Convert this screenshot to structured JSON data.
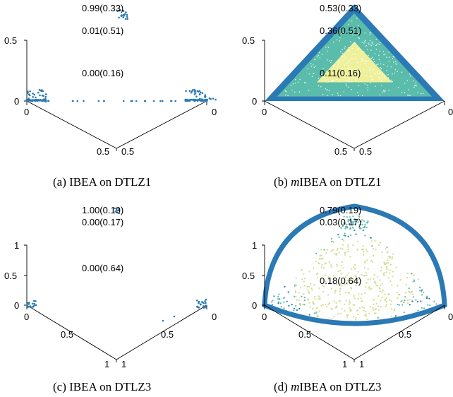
{
  "colors": {
    "boundary": "#2b79b5",
    "mid": "#5bbcab",
    "inner": "#eef09a",
    "inner_dtlz3": "#d1dc8c",
    "background": "#ffffff"
  },
  "chart_data": [
    {
      "id": "a",
      "type": "scatter",
      "caption_label": "(a) IBEA on DTLZ1",
      "problem": "DTLZ1",
      "axis_max": 0.5,
      "tick_labels": {
        "z_top": "0.5",
        "z_zero": "0",
        "left_zero": "0",
        "right_zero": "0",
        "left_half": "0.5",
        "right_half": "0.5"
      },
      "annotations": [
        "0.99(0.33)",
        "0.01(0.51)",
        "0.00(0.16)"
      ],
      "fill_regions": false
    },
    {
      "id": "b",
      "type": "scatter",
      "caption_label": "(b) mIBEA on DTLZ1",
      "caption_prefix": "(b) ",
      "caption_italic": "m",
      "caption_rest": "IBEA on DTLZ1",
      "problem": "DTLZ1",
      "axis_max": 0.5,
      "tick_labels": {
        "z_top": "0.5",
        "z_zero": "0",
        "left_zero": "0",
        "right_zero": "0",
        "left_half": "0.5",
        "right_half": "0.5"
      },
      "annotations": [
        "0.53(0.33)",
        "0.36(0.51)",
        "0.11(0.16)"
      ],
      "fill_regions": true
    },
    {
      "id": "c",
      "type": "scatter",
      "caption_label": "(c) IBEA on DTLZ3",
      "problem": "DTLZ3",
      "axis_max": 1,
      "tick_labels": {
        "z_top": "1",
        "z_mid": "0.5",
        "z_zero": "0",
        "left_zero": "0",
        "right_zero": "0",
        "left_half": "0.5",
        "right_half": "0.5",
        "left_one": "1",
        "right_one": "1"
      },
      "annotations": [
        "1.00(0.19)",
        "0.00(0.17)",
        "0.00(0.64)"
      ],
      "fill_regions": false
    },
    {
      "id": "d",
      "type": "scatter",
      "caption_label": "(d) mIBEA on DTLZ3",
      "caption_prefix": "(d) ",
      "caption_italic": "m",
      "caption_rest": "IBEA on DTLZ3",
      "problem": "DTLZ3",
      "axis_max": 1,
      "tick_labels": {
        "z_top": "1",
        "z_mid": "0.5",
        "z_zero": "0",
        "left_zero": "0",
        "right_zero": "0",
        "left_half": "0.5",
        "right_half": "0.5",
        "left_one": "1",
        "right_one": "1"
      },
      "annotations": [
        "0.79(0.19)",
        "0.03(0.17)",
        "0.18(0.64)"
      ],
      "fill_regions": true
    }
  ]
}
